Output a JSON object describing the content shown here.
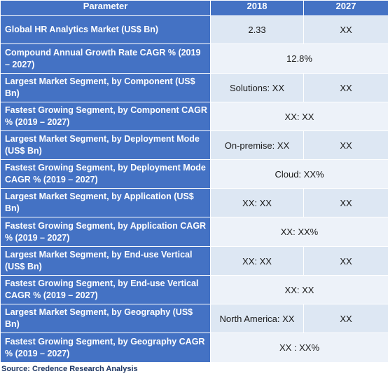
{
  "header": {
    "parameter": "Parameter",
    "year1": "2018",
    "year2": "2027"
  },
  "rows": [
    {
      "parameter": "Global HR Analytics Market (US$ Bn)",
      "v2018": "2.33",
      "v2027": "XX"
    },
    {
      "parameter": "Compound Annual Growth Rate CAGR % (2019 – 2027)",
      "merged": "12.8%"
    },
    {
      "parameter": "Largest Market Segment, by Component (US$ Bn)",
      "v2018": "Solutions: XX",
      "v2027": "XX"
    },
    {
      "parameter": "Fastest Growing Segment, by Component CAGR % (2019 – 2027)",
      "merged": "XX: XX"
    },
    {
      "parameter": "Largest Market Segment, by Deployment Mode (US$ Bn)",
      "v2018": "On-premise: XX",
      "v2027": "XX"
    },
    {
      "parameter": "Fastest Growing Segment, by Deployment Mode CAGR % (2019 – 2027)",
      "merged": "Cloud: XX%"
    },
    {
      "parameter": "Largest Market Segment, by Application (US$ Bn)",
      "v2018": "XX: XX",
      "v2027": "XX"
    },
    {
      "parameter": "Fastest Growing Segment, by Application CAGR % (2019 – 2027)",
      "merged": "XX: XX%"
    },
    {
      "parameter": "Largest Market Segment, by End-use Vertical (US$ Bn)",
      "v2018": "XX: XX",
      "v2027": "XX"
    },
    {
      "parameter": "Fastest Growing Segment, by End-use Vertical CAGR % (2019 – 2027)",
      "merged": "XX: XX"
    },
    {
      "parameter": "Largest Market Segment, by Geography (US$ Bn)",
      "v2018": "North America: XX",
      "v2027": "XX"
    },
    {
      "parameter": "Fastest Growing Segment, by Geography CAGR % (2019 – 2027)",
      "merged": "XX : XX%"
    }
  ],
  "source": "Source: Credence Research Analysis"
}
